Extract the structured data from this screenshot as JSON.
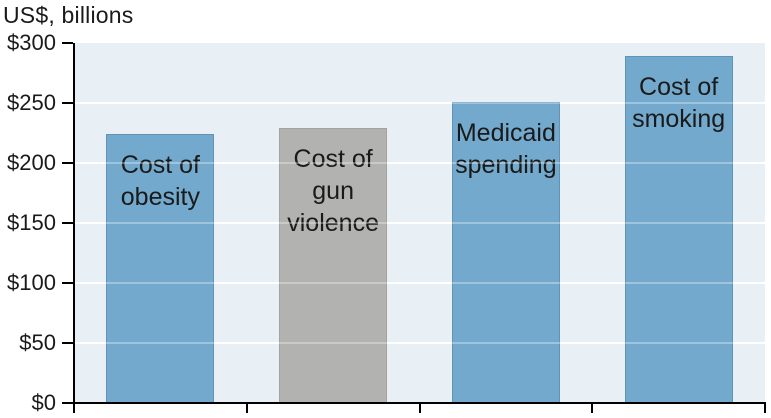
{
  "title": "US$, billions",
  "colors": {
    "bar_blue": "#72a9cc",
    "bar_blue_border": "#5f94b8",
    "bar_gray": "#b2b2b0",
    "bar_gray_border": "#a3a29f",
    "plot_background": "#e8f0f5",
    "gridline": "#ffffff",
    "axis": "#000000",
    "text": "#1a1a1a"
  },
  "chart_data": {
    "type": "bar",
    "title": "US$, billions",
    "categories": [
      "Cost of obesity",
      "Cost of gun violence",
      "Medicaid spending",
      "Cost of smoking"
    ],
    "label_lines": [
      [
        "Cost of",
        "obesity"
      ],
      [
        "Cost of",
        "gun",
        "violence"
      ],
      [
        "Medicaid",
        "spending"
      ],
      [
        "Cost of",
        "smoking"
      ]
    ],
    "values": [
      224,
      229,
      251,
      289
    ],
    "bar_colors": [
      "#72a9cc",
      "#b2b2b0",
      "#72a9cc",
      "#72a9cc"
    ],
    "bar_border_colors": [
      "#5f94b8",
      "#a3a29f",
      "#5f94b8",
      "#5f94b8"
    ],
    "xlabel": "",
    "ylabel": "US$, billions",
    "ylim": [
      0,
      300
    ],
    "ytick_step": 50,
    "ytick_labels": [
      "$0",
      "$50",
      "$100",
      "$150",
      "$200",
      "$250",
      "$300"
    ],
    "grid": true,
    "legend": false,
    "label_position": "inside-top"
  }
}
